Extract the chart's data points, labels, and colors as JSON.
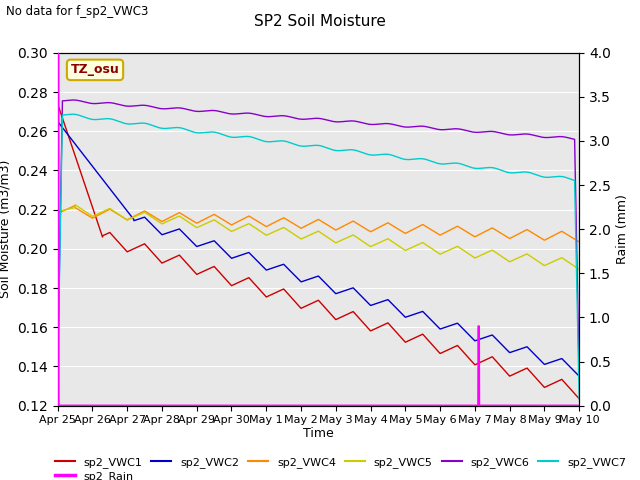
{
  "title": "SP2 Soil Moisture",
  "subtitle": "No data for f_sp2_VWC3",
  "xlabel": "Time",
  "ylabel_left": "Soil Moisture (m3/m3)",
  "ylabel_right": "Raim (mm)",
  "ylim_left": [
    0.12,
    0.3
  ],
  "ylim_right": [
    0.0,
    4.0
  ],
  "yticks_left": [
    0.12,
    0.14,
    0.16,
    0.18,
    0.2,
    0.22,
    0.24,
    0.26,
    0.28,
    0.3
  ],
  "yticks_right": [
    0.0,
    0.5,
    1.0,
    1.5,
    2.0,
    2.5,
    3.0,
    3.5,
    4.0
  ],
  "xtick_labels": [
    "Apr 25",
    "Apr 26",
    "Apr 27",
    "Apr 28",
    "Apr 29",
    "Apr 30",
    "May 1",
    "May 2",
    "May 3",
    "May 4",
    "May 5",
    "May 6",
    "May 7",
    "May 8",
    "May 9",
    "May 10"
  ],
  "tz_label": "TZ_osu",
  "line_colors": {
    "sp2_VWC1": "#cc0000",
    "sp2_VWC2": "#0000cc",
    "sp2_VWC4": "#ff8800",
    "sp2_VWC5": "#cccc00",
    "sp2_VWC6": "#8800cc",
    "sp2_VWC7": "#00cccc",
    "sp2_Rain": "#ff00ff"
  }
}
